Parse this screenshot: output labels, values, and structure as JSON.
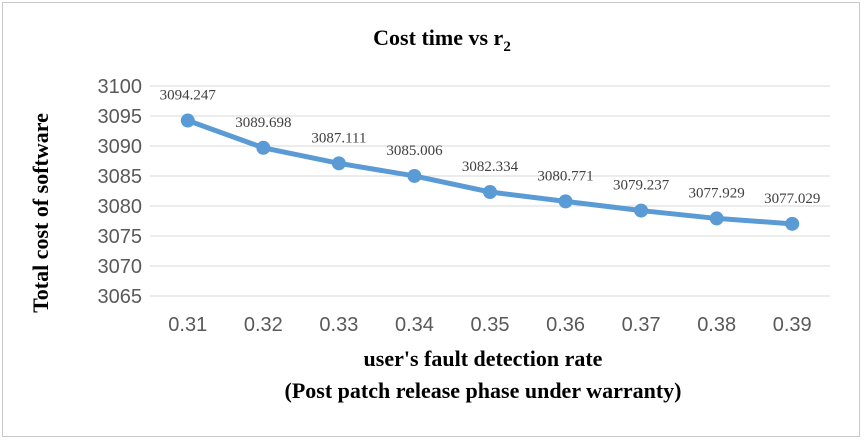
{
  "chart_data": {
    "type": "line",
    "title": "Cost time vs r",
    "title_subscript": "2",
    "xlabel": "user's fault detection rate",
    "xlabel_line2": "(Post patch release phase under warranty)",
    "ylabel": "Total cost of software",
    "categories": [
      "0.31",
      "0.32",
      "0.33",
      "0.34",
      "0.35",
      "0.36",
      "0.37",
      "0.38",
      "0.39"
    ],
    "values": [
      3094.247,
      3089.698,
      3087.111,
      3085.006,
      3082.334,
      3080.771,
      3079.237,
      3077.929,
      3077.029
    ],
    "data_labels": [
      "3094.247",
      "3089.698",
      "3087.111",
      "3085.006",
      "3082.334",
      "3080.771",
      "3079.237",
      "3077.929",
      "3077.029"
    ],
    "ylim": [
      3065,
      3100
    ],
    "yticks": [
      3065,
      3070,
      3075,
      3080,
      3085,
      3090,
      3095,
      3100
    ],
    "grid": true,
    "series_color": "#5b9bd5"
  }
}
